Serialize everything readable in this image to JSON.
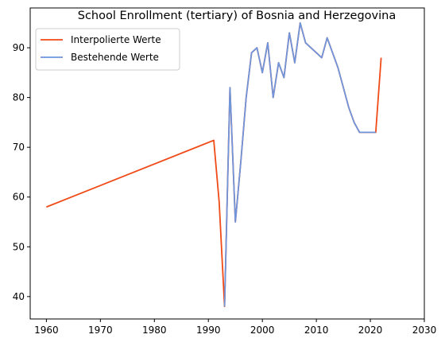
{
  "chart_data": {
    "type": "line",
    "title": "School Enrollment (tertiary) of Bosnia and Herzegovina",
    "xlabel": "",
    "ylabel": "",
    "xlim": [
      1957,
      2030
    ],
    "ylim": [
      35.5,
      98
    ],
    "xticks": [
      1960,
      1970,
      1980,
      1990,
      2000,
      2010,
      2020,
      2030
    ],
    "yticks": [
      40,
      50,
      60,
      70,
      80,
      90
    ],
    "grid": false,
    "legend_position": "top-left",
    "series": [
      {
        "name": "Interpolierte Werte",
        "color": "#f04a17",
        "x": [
          1960,
          1991,
          1992,
          1993,
          1994,
          1995,
          1996,
          1997,
          1998,
          1999,
          2000,
          2001,
          2002,
          2003,
          2004,
          2005,
          2006,
          2007,
          2008,
          2011,
          2012,
          2014,
          2016,
          2017,
          2018,
          2021,
          2022
        ],
        "y": [
          58,
          71.4,
          59,
          38,
          82,
          55,
          67,
          80,
          89,
          90,
          85,
          91,
          80,
          87,
          84,
          93,
          87,
          95,
          91,
          88,
          92,
          86,
          78,
          75,
          73,
          73,
          88
        ]
      },
      {
        "name": "Bestehende Werte",
        "color": "#6f95dc",
        "x": [
          1993,
          1994,
          1995,
          1996,
          1997,
          1998,
          1999,
          2000,
          2001,
          2002,
          2003,
          2004,
          2005,
          2006,
          2007,
          2008,
          2011,
          2012,
          2014,
          2016,
          2017,
          2018,
          2021
        ],
        "y": [
          38,
          82,
          55,
          67,
          80,
          89,
          90,
          85,
          91,
          80,
          87,
          84,
          93,
          87,
          95,
          91,
          88,
          92,
          86,
          78,
          75,
          73,
          73
        ]
      }
    ]
  }
}
